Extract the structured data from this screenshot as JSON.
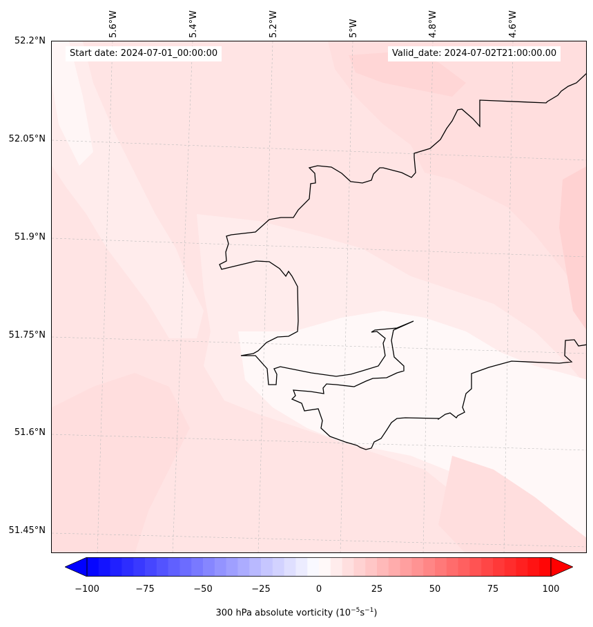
{
  "header": {
    "start_date": "Start date: 2024-07-01_00:00:00",
    "valid_date": "Valid_date: 2024-07-02T21:00:00.00"
  },
  "map": {
    "lon_labels": [
      "5.6°W",
      "5.4°W",
      "5.2°W",
      "5°W",
      "4.8°W",
      "4.6°W"
    ],
    "lat_labels": [
      "52.2°N",
      "52.05°N",
      "51.9°N",
      "51.75°N",
      "51.6°N",
      "51.45°N"
    ],
    "coastline_color": "#000000",
    "shade_colors": [
      "#fff8f8",
      "#ffecec",
      "#ffdede",
      "#ffd0d0"
    ]
  },
  "colorbar": {
    "min": -100,
    "max": 100,
    "ticks": [
      "−100",
      "−75",
      "−50",
      "−25",
      "0",
      "25",
      "50",
      "75",
      "100"
    ],
    "label_text": "300 hPa absolute vorticity (10",
    "label_exp1": "−5",
    "label_mid": "s",
    "label_exp2": "−1",
    "label_end": ")",
    "low_color": "#0000ff",
    "mid_color": "#ffffff",
    "high_color": "#ff0000"
  }
}
